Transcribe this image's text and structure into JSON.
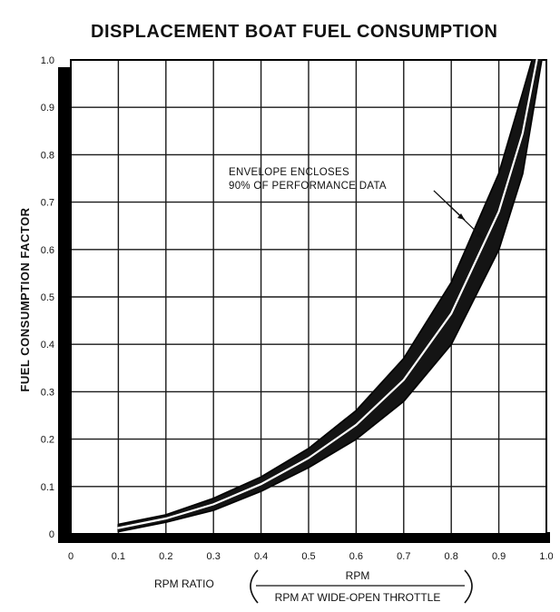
{
  "chart_data": {
    "type": "area",
    "title": "DISPLACEMENT BOAT FUEL CONSUMPTION",
    "xlabel": "RPM RATIO",
    "xlabel_fraction": {
      "numerator": "RPM",
      "denominator": "RPM AT WIDE-OPEN THROTTLE"
    },
    "ylabel": "FUEL CONSUMPTION FACTOR",
    "xlim": [
      0,
      1.0
    ],
    "ylim": [
      0,
      1.0
    ],
    "x_ticks": [
      "0",
      "0.1",
      "0.2",
      "0.3",
      "0.4",
      "0.5",
      "0.6",
      "0.7",
      "0.8",
      "0.9",
      "1.0"
    ],
    "y_ticks": [
      "0",
      "0.1",
      "0.2",
      "0.3",
      "0.4",
      "0.5",
      "0.6",
      "0.7",
      "0.8",
      "0.9",
      "1.0"
    ],
    "grid": true,
    "annotation": [
      "ENVELOPE ENCLOSES",
      "90% OF PERFORMANCE DATA"
    ],
    "series": [
      {
        "x": [
          0.1,
          0.2,
          0.3,
          0.4,
          0.5,
          0.6,
          0.7,
          0.8,
          0.9,
          0.95,
          0.97
        ],
        "y": [
          0.02,
          0.04,
          0.075,
          0.12,
          0.18,
          0.26,
          0.37,
          0.53,
          0.76,
          0.93,
          1.0
        ]
      },
      {
        "x": [
          0.1,
          0.2,
          0.3,
          0.4,
          0.5,
          0.6,
          0.7,
          0.8,
          0.9,
          0.95,
          0.99
        ],
        "y": [
          0.005,
          0.025,
          0.05,
          0.09,
          0.14,
          0.2,
          0.28,
          0.4,
          0.6,
          0.76,
          1.0
        ]
      }
    ],
    "colors": {
      "envelope": "#141414",
      "grid": "#1a1a1a",
      "frame": "#000000"
    }
  }
}
